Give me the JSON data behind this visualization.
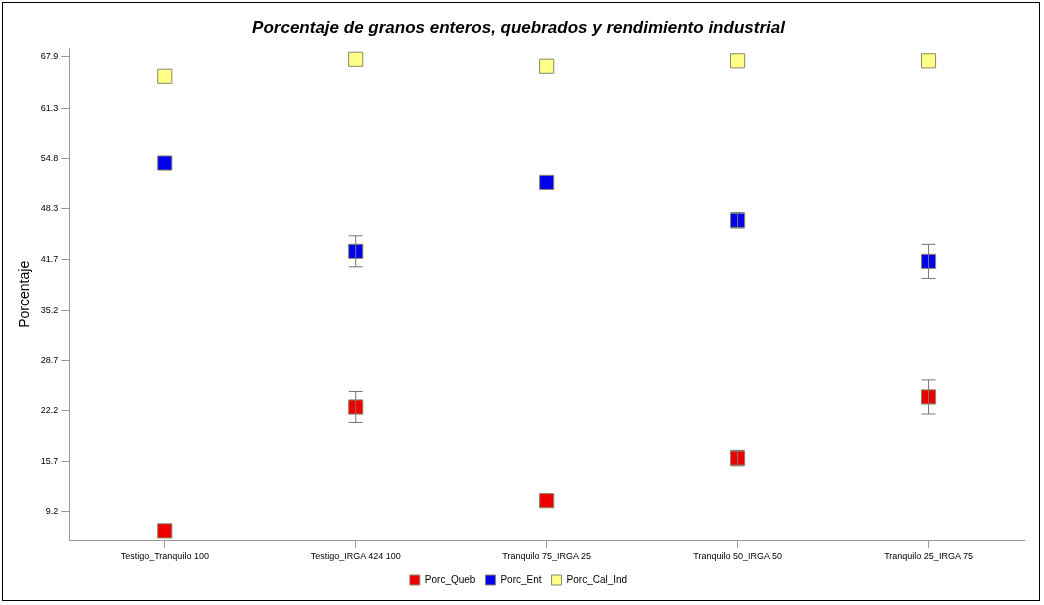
{
  "chart_data": {
    "type": "scatter",
    "title": "Porcentaje de granos enteros, quebrados y rendimiento industrial",
    "ylabel": "Porcentaje",
    "categories": [
      "Testigo_Tranquilo 100",
      "Testigo_IRGA 424 100",
      "Tranquilo 75_IRGA 25",
      "Tranquilo 50_IRGA 50",
      "Tranquilo 25_IRGA 75"
    ],
    "series": [
      {
        "name": "Porc_Queb",
        "color": "#ee0000",
        "values": [
          6.7,
          22.7,
          10.6,
          16.1,
          24.0
        ],
        "errors": [
          null,
          2.0,
          null,
          1.0,
          2.2
        ]
      },
      {
        "name": "Porc_Ent",
        "color": "#0000ee",
        "values": [
          54.2,
          42.8,
          51.7,
          46.8,
          41.5
        ],
        "errors": [
          null,
          2.0,
          null,
          1.0,
          2.2
        ]
      },
      {
        "name": "Porc_Cal_Ind",
        "color": "#ffff88",
        "values": [
          65.4,
          67.6,
          66.7,
          67.4,
          67.4
        ]
      }
    ],
    "ylim": [
      5.5,
      69
    ],
    "yticks": [
      9.2,
      15.7,
      22.2,
      28.7,
      35.2,
      41.7,
      48.3,
      54.8,
      61.3,
      67.9
    ],
    "grid": false,
    "legend": "bottom",
    "marker": "square"
  }
}
